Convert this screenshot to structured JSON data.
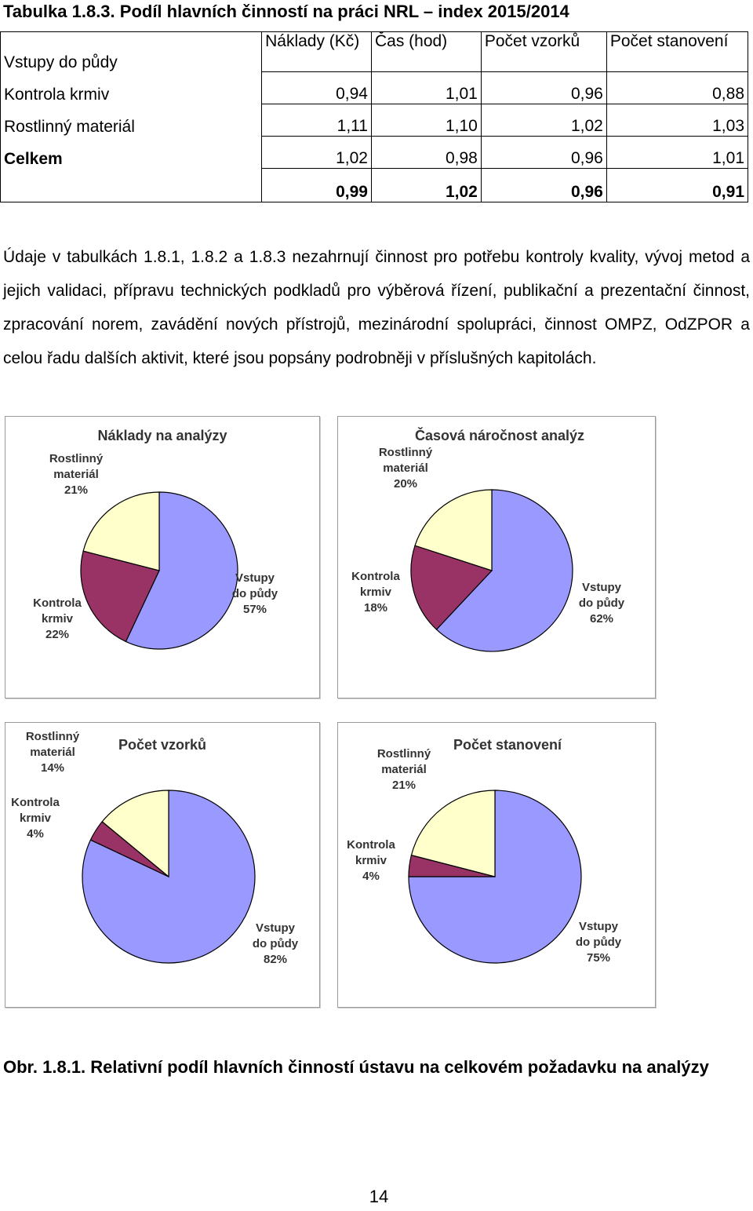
{
  "title": "Tabulka 1.8.3. Podíl hlavních činností na práci NRL – index 2015/2014",
  "table": {
    "columns": [
      "Náklady (Kč)",
      "Čas (hod)",
      "Počet vzorků",
      "Počet stanovení"
    ],
    "rows": [
      {
        "label": "Vstupy do půdy",
        "values": [
          "0,94",
          "1,01",
          "0,96",
          "0,88"
        ]
      },
      {
        "label": "Kontrola krmiv",
        "values": [
          "1,11",
          "1,10",
          "1,02",
          "1,03"
        ]
      },
      {
        "label": "Rostlinný materiál",
        "values": [
          "1,02",
          "0,98",
          "0,96",
          "1,01"
        ]
      },
      {
        "label": "Celkem",
        "values": [
          "0,99",
          "1,02",
          "0,96",
          "0,91"
        ]
      }
    ]
  },
  "paragraph": "Údaje v tabulkách 1.8.1, 1.8.2 a 1.8.3 nezahrnují činnost pro potřebu kontroly kvality, vývoj metod a jejich validaci, přípravu technických podkladů pro výběrová řízení, publikační a prezentační činnost, zpracování norem, zavádění nových přístrojů, mezinárodní spolupráci, činnost OMPZ, OdZPOR a celou řadu dalších aktivit, které jsou popsány podrobněji v příslušných kapitolách.",
  "colors": {
    "vstupy": "#9999ff",
    "kontrola": "#993366",
    "rostlinny": "#ffffcc"
  },
  "chart_data": [
    {
      "type": "pie",
      "title": "Náklady na analýzy",
      "slices": [
        {
          "name": "Vstupy do půdy",
          "label_lines": [
            "Vstupy",
            "do půdy"
          ],
          "value": 57,
          "pct": "57%"
        },
        {
          "name": "Kontrola krmiv",
          "label_lines": [
            "Kontrola",
            "krmiv"
          ],
          "value": 22,
          "pct": "22%"
        },
        {
          "name": "Rostlinný materiál",
          "label_lines": [
            "Rostlinný",
            "materiál"
          ],
          "value": 21,
          "pct": "21%"
        }
      ]
    },
    {
      "type": "pie",
      "title": "Časová náročnost analýz",
      "slices": [
        {
          "name": "Vstupy do půdy",
          "label_lines": [
            "Vstupy",
            "do půdy"
          ],
          "value": 62,
          "pct": "62%"
        },
        {
          "name": "Kontrola krmiv",
          "label_lines": [
            "Kontrola",
            "krmiv"
          ],
          "value": 18,
          "pct": "18%"
        },
        {
          "name": "Rostlinný materiál",
          "label_lines": [
            "Rostlinný",
            "materiál"
          ],
          "value": 20,
          "pct": "20%"
        }
      ]
    },
    {
      "type": "pie",
      "title": "Počet vzorků",
      "slices": [
        {
          "name": "Vstupy do půdy",
          "label_lines": [
            "Vstupy",
            "do půdy"
          ],
          "value": 82,
          "pct": "82%"
        },
        {
          "name": "Kontrola krmiv",
          "label_lines": [
            "Kontrola",
            "krmiv"
          ],
          "value": 4,
          "pct": "4%"
        },
        {
          "name": "Rostlinný materiál",
          "label_lines": [
            "Rostlinný",
            "materiál"
          ],
          "value": 14,
          "pct": "14%"
        }
      ]
    },
    {
      "type": "pie",
      "title": "Počet stanovení",
      "slices": [
        {
          "name": "Vstupy do půdy",
          "label_lines": [
            "Vstupy",
            "do půdy"
          ],
          "value": 75,
          "pct": "75%"
        },
        {
          "name": "Kontrola krmiv",
          "label_lines": [
            "Kontrola",
            "krmiv"
          ],
          "value": 4,
          "pct": "4%"
        },
        {
          "name": "Rostlinný materiál",
          "label_lines": [
            "Rostlinný",
            "materiál"
          ],
          "value": 21,
          "pct": "21%"
        }
      ]
    }
  ],
  "caption": "Obr. 1.8.1. Relativní podíl hlavních činností ústavu na celkovém požadavku na analýzy",
  "page_number": "14"
}
